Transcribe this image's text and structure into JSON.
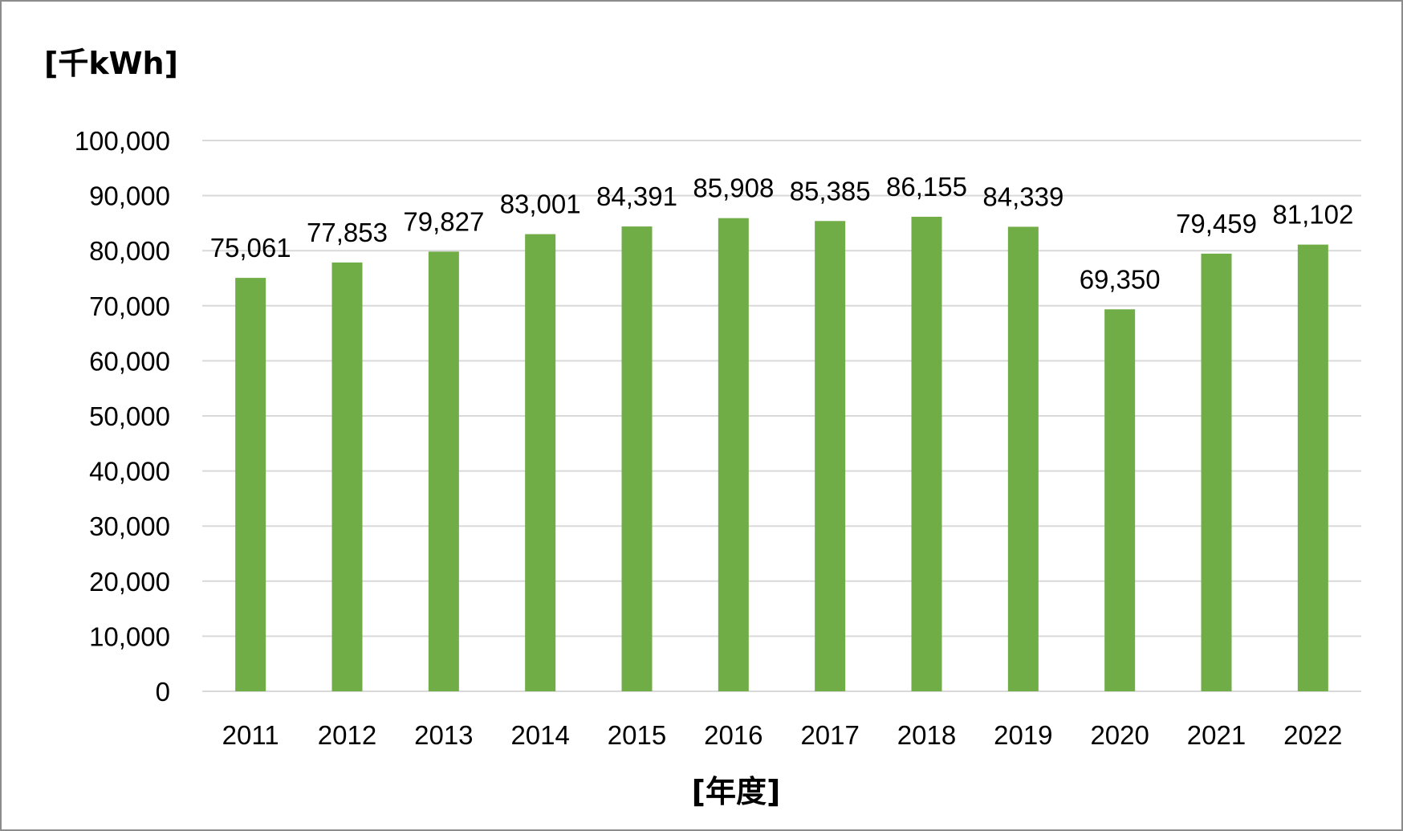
{
  "chart_data": {
    "type": "bar",
    "title": "",
    "ylabel": "[千kWh]",
    "xlabel": "[年度]",
    "categories": [
      "2011",
      "2012",
      "2013",
      "2014",
      "2015",
      "2016",
      "2017",
      "2018",
      "2019",
      "2020",
      "2021",
      "2022"
    ],
    "values": [
      75061,
      77853,
      79827,
      83001,
      84391,
      85908,
      85385,
      86155,
      84339,
      69350,
      79459,
      81102
    ],
    "data_labels": [
      "75,061",
      "77,853",
      "79,827",
      "83,001",
      "84,391",
      "85,908",
      "85,385",
      "86,155",
      "84,339",
      "69,350",
      "79,459",
      "81,102"
    ],
    "ylim": [
      0,
      100000
    ],
    "yticks": [
      0,
      10000,
      20000,
      30000,
      40000,
      50000,
      60000,
      70000,
      80000,
      90000,
      100000
    ],
    "ytick_labels": [
      "0",
      "10,000",
      "20,000",
      "30,000",
      "40,000",
      "50,000",
      "60,000",
      "70,000",
      "80,000",
      "90,000",
      "100,000"
    ],
    "grid": true,
    "legend": "none",
    "colors": {
      "bar": "#70ad47",
      "grid": "#d9d9d9",
      "border": "#8c8c8c"
    }
  }
}
